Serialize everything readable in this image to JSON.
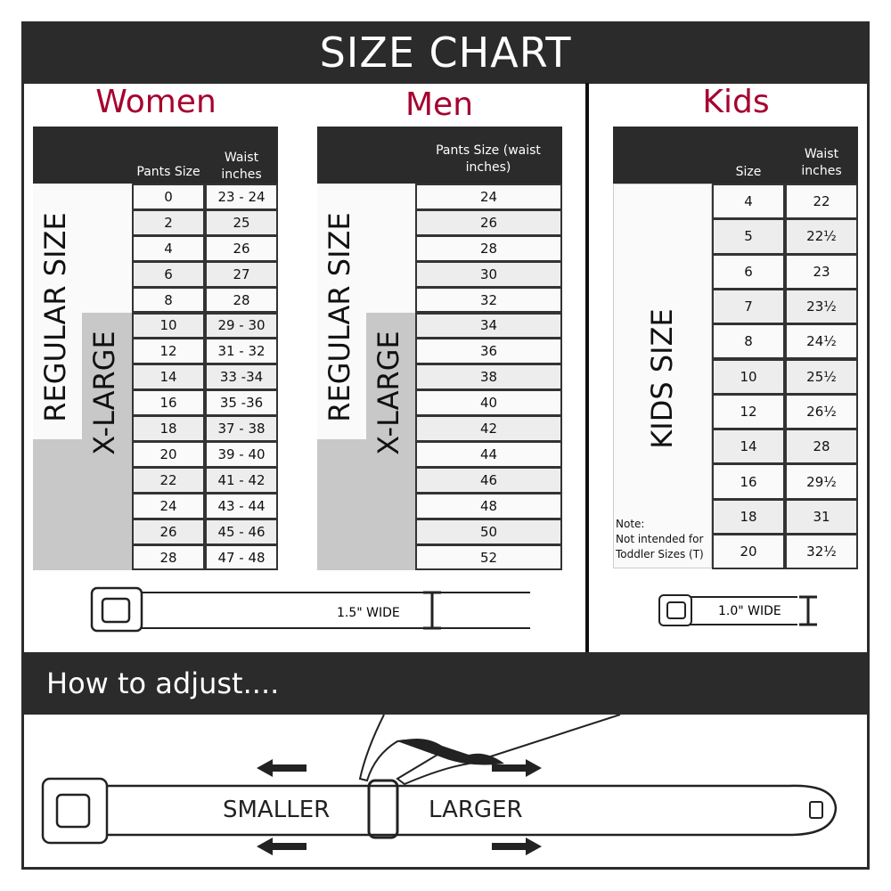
{
  "title": "SIZE CHART",
  "women": {
    "title": "Women",
    "col1": "Pants Size",
    "col2": "Waist inches",
    "regular_label": "REGULAR SIZE",
    "xl_label": "X-LARGE",
    "rows": [
      [
        "0",
        "23 - 24"
      ],
      [
        "2",
        "25"
      ],
      [
        "4",
        "26"
      ],
      [
        "6",
        "27"
      ],
      [
        "8",
        "28"
      ],
      [
        "10",
        "29 - 30"
      ],
      [
        "12",
        "31 - 32"
      ],
      [
        "14",
        "33 -34"
      ],
      [
        "16",
        "35 -36"
      ],
      [
        "18",
        "37 - 38"
      ],
      [
        "20",
        "39 - 40"
      ],
      [
        "22",
        "41 - 42"
      ],
      [
        "24",
        "43 - 44"
      ],
      [
        "26",
        "45 - 46"
      ],
      [
        "28",
        "47 - 48"
      ]
    ]
  },
  "men": {
    "title": "Men",
    "col1": "Pants Size (waist inches)",
    "regular_label": "REGULAR SIZE",
    "xl_label": "X-LARGE",
    "rows": [
      "24",
      "26",
      "28",
      "30",
      "32",
      "34",
      "36",
      "38",
      "40",
      "42",
      "44",
      "46",
      "48",
      "50",
      "52"
    ]
  },
  "kids": {
    "title": "Kids",
    "col1": "Size",
    "col2": "Waist inches",
    "label": "KIDS SIZE",
    "note": "Note:",
    "note_text": "Not intended for Toddler Sizes (T)",
    "rows": [
      [
        "4",
        "22"
      ],
      [
        "5",
        "22½"
      ],
      [
        "6",
        "23"
      ],
      [
        "7",
        "23½"
      ],
      [
        "8",
        "24½"
      ],
      [
        "10",
        "25½"
      ],
      [
        "12",
        "26½"
      ],
      [
        "14",
        "28"
      ],
      [
        "16",
        "29½"
      ],
      [
        "18",
        "31"
      ],
      [
        "20",
        "32½"
      ]
    ]
  },
  "adult_belt_width": "1.5\" WIDE",
  "kids_belt_width": "1.0\" WIDE",
  "adjust": {
    "title": "How to adjust....",
    "smaller": "SMALLER",
    "larger": "LARGER"
  },
  "colors": {
    "dark": "#2b2b2b",
    "accent": "#a6032f",
    "xl_gray": "#c8c8c8"
  }
}
